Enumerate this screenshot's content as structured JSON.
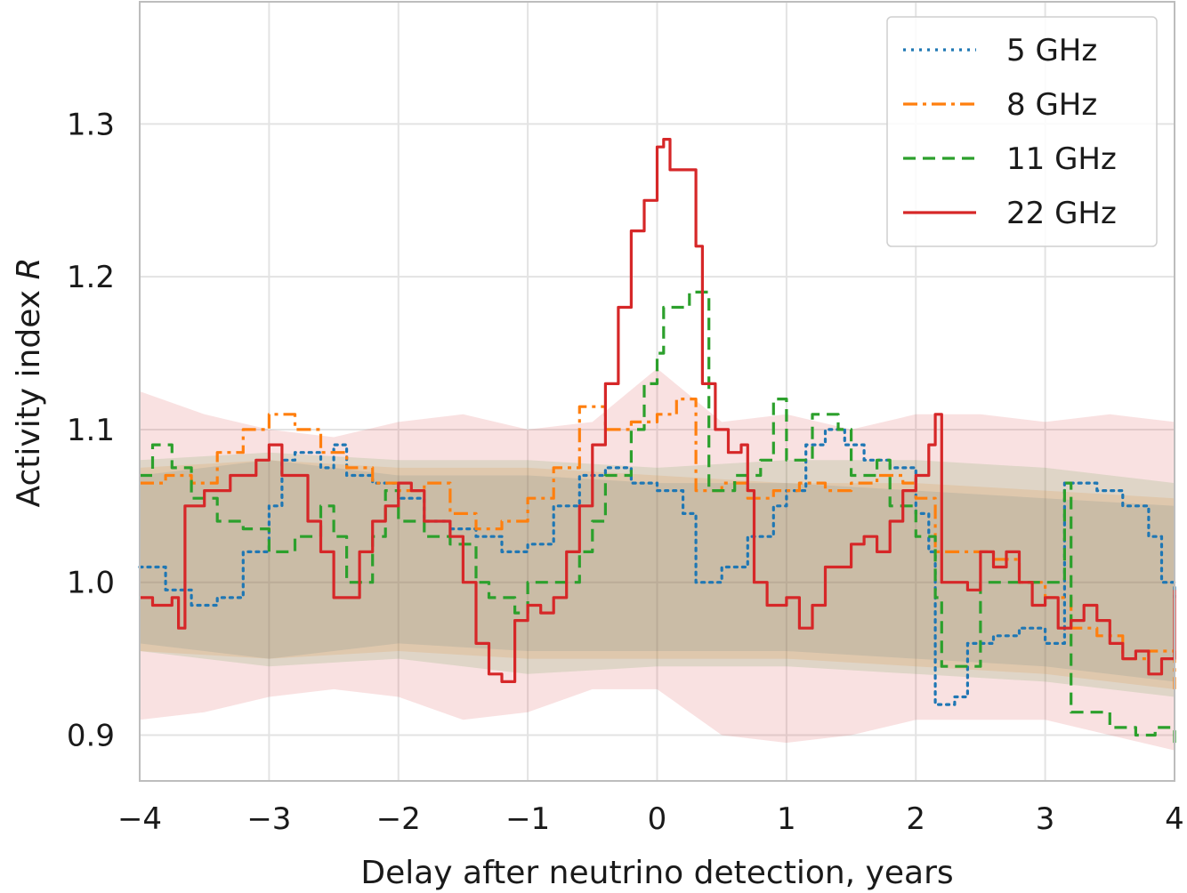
{
  "chart_data": {
    "type": "line",
    "title": "",
    "xlabel": "Delay after neutrino detection, years",
    "ylabel": "Activity index R",
    "ylabel_main": "Activity index ",
    "ylabel_italic": "R",
    "xlim": [
      -4,
      4
    ],
    "ylim": [
      0.87,
      1.38
    ],
    "xticks": [
      -4,
      -3,
      -2,
      -1,
      0,
      1,
      2,
      3,
      4
    ],
    "xtick_labels": [
      "−4",
      "−3",
      "−2",
      "−1",
      "0",
      "1",
      "2",
      "3",
      "4"
    ],
    "yticks": [
      0.9,
      1.0,
      1.1,
      1.2,
      1.3
    ],
    "ytick_labels": [
      "0.9",
      "1.0",
      "1.1",
      "1.2",
      "1.3"
    ],
    "grid": true,
    "legend_position": "top-right",
    "series": [
      {
        "name": "5 GHz",
        "color": "#1f77b4",
        "style": "dotted",
        "band": [
          [
            -4.0,
            0.96,
            1.07
          ],
          [
            -3.0,
            0.95,
            1.08
          ],
          [
            -2.0,
            0.96,
            1.07
          ],
          [
            -1.0,
            0.955,
            1.07
          ],
          [
            0.0,
            0.955,
            1.065
          ],
          [
            1.0,
            0.955,
            1.065
          ],
          [
            2.0,
            0.95,
            1.06
          ],
          [
            3.0,
            0.945,
            1.055
          ],
          [
            4.0,
            0.935,
            1.05
          ]
        ],
        "points": [
          [
            -4.0,
            1.01
          ],
          [
            -3.8,
            0.995
          ],
          [
            -3.6,
            0.985
          ],
          [
            -3.4,
            0.99
          ],
          [
            -3.2,
            1.02
          ],
          [
            -3.0,
            1.05
          ],
          [
            -2.9,
            1.08
          ],
          [
            -2.8,
            1.085
          ],
          [
            -2.6,
            1.075
          ],
          [
            -2.5,
            1.09
          ],
          [
            -2.4,
            1.07
          ],
          [
            -2.2,
            1.065
          ],
          [
            -2.0,
            1.055
          ],
          [
            -1.8,
            1.04
          ],
          [
            -1.6,
            1.035
          ],
          [
            -1.4,
            1.03
          ],
          [
            -1.2,
            1.02
          ],
          [
            -1.0,
            1.025
          ],
          [
            -0.8,
            1.05
          ],
          [
            -0.6,
            1.07
          ],
          [
            -0.4,
            1.075
          ],
          [
            -0.2,
            1.065
          ],
          [
            0.0,
            1.06
          ],
          [
            0.2,
            1.045
          ],
          [
            0.3,
            1.0
          ],
          [
            0.5,
            1.01
          ],
          [
            0.7,
            1.03
          ],
          [
            0.9,
            1.05
          ],
          [
            1.0,
            1.06
          ],
          [
            1.15,
            1.09
          ],
          [
            1.3,
            1.1
          ],
          [
            1.45,
            1.09
          ],
          [
            1.6,
            1.08
          ],
          [
            1.8,
            1.075
          ],
          [
            2.0,
            1.045
          ],
          [
            2.1,
            1.02
          ],
          [
            2.15,
            0.92
          ],
          [
            2.3,
            0.925
          ],
          [
            2.4,
            0.96
          ],
          [
            2.6,
            0.965
          ],
          [
            2.8,
            0.97
          ],
          [
            3.0,
            0.96
          ],
          [
            3.15,
            1.065
          ],
          [
            3.4,
            1.06
          ],
          [
            3.6,
            1.05
          ],
          [
            3.8,
            1.03
          ],
          [
            3.9,
            1.0
          ],
          [
            4.0,
            0.99
          ]
        ]
      },
      {
        "name": "8 GHz",
        "color": "#ff7f0e",
        "style": "dashdot",
        "band": [
          [
            -4.0,
            0.955,
            1.075
          ],
          [
            -3.0,
            0.95,
            1.08
          ],
          [
            -2.0,
            0.955,
            1.075
          ],
          [
            -1.0,
            0.95,
            1.075
          ],
          [
            0.0,
            0.95,
            1.07
          ],
          [
            1.0,
            0.95,
            1.065
          ],
          [
            2.0,
            0.945,
            1.065
          ],
          [
            3.0,
            0.94,
            1.06
          ],
          [
            4.0,
            0.93,
            1.055
          ]
        ],
        "points": [
          [
            -4.0,
            1.065
          ],
          [
            -3.8,
            1.07
          ],
          [
            -3.6,
            1.065
          ],
          [
            -3.4,
            1.085
          ],
          [
            -3.2,
            1.1
          ],
          [
            -3.0,
            1.11
          ],
          [
            -2.8,
            1.1
          ],
          [
            -2.6,
            1.085
          ],
          [
            -2.4,
            1.075
          ],
          [
            -2.2,
            1.065
          ],
          [
            -2.0,
            1.06
          ],
          [
            -1.8,
            1.065
          ],
          [
            -1.6,
            1.045
          ],
          [
            -1.4,
            1.035
          ],
          [
            -1.2,
            1.04
          ],
          [
            -1.0,
            1.055
          ],
          [
            -0.8,
            1.075
          ],
          [
            -0.6,
            1.115
          ],
          [
            -0.4,
            1.1
          ],
          [
            -0.2,
            1.105
          ],
          [
            0.0,
            1.11
          ],
          [
            0.15,
            1.12
          ],
          [
            0.3,
            1.06
          ],
          [
            0.5,
            1.065
          ],
          [
            0.7,
            1.055
          ],
          [
            0.9,
            1.06
          ],
          [
            1.1,
            1.065
          ],
          [
            1.3,
            1.06
          ],
          [
            1.5,
            1.065
          ],
          [
            1.7,
            1.07
          ],
          [
            1.9,
            1.065
          ],
          [
            2.0,
            1.055
          ],
          [
            2.15,
            1.02
          ],
          [
            2.4,
            1.02
          ],
          [
            2.6,
            1.015
          ],
          [
            2.8,
            1.0
          ],
          [
            3.0,
            0.99
          ],
          [
            3.2,
            0.97
          ],
          [
            3.4,
            0.965
          ],
          [
            3.6,
            0.95
          ],
          [
            3.8,
            0.955
          ],
          [
            4.0,
            0.93
          ]
        ]
      },
      {
        "name": "11 GHz",
        "color": "#2ca02c",
        "style": "dashed",
        "band": [
          [
            -4.0,
            0.955,
            1.08
          ],
          [
            -3.0,
            0.945,
            1.085
          ],
          [
            -2.0,
            0.95,
            1.08
          ],
          [
            -1.0,
            0.94,
            1.08
          ],
          [
            0.0,
            0.945,
            1.075
          ],
          [
            1.0,
            0.945,
            1.08
          ],
          [
            2.0,
            0.94,
            1.08
          ],
          [
            3.0,
            0.935,
            1.075
          ],
          [
            4.0,
            0.925,
            1.065
          ]
        ],
        "points": [
          [
            -4.0,
            1.07
          ],
          [
            -3.9,
            1.09
          ],
          [
            -3.75,
            1.075
          ],
          [
            -3.6,
            1.055
          ],
          [
            -3.4,
            1.04
          ],
          [
            -3.2,
            1.035
          ],
          [
            -3.0,
            1.02
          ],
          [
            -2.8,
            1.03
          ],
          [
            -2.6,
            1.05
          ],
          [
            -2.5,
            1.03
          ],
          [
            -2.4,
            1.0
          ],
          [
            -2.2,
            1.03
          ],
          [
            -2.1,
            1.06
          ],
          [
            -2.0,
            1.04
          ],
          [
            -1.8,
            1.03
          ],
          [
            -1.6,
            1.025
          ],
          [
            -1.4,
            1.0
          ],
          [
            -1.3,
            0.99
          ],
          [
            -1.1,
            0.98
          ],
          [
            -1.0,
            1.0
          ],
          [
            -0.8,
            1.0
          ],
          [
            -0.6,
            1.02
          ],
          [
            -0.5,
            1.04
          ],
          [
            -0.4,
            1.07
          ],
          [
            -0.2,
            1.1
          ],
          [
            -0.1,
            1.13
          ],
          [
            0.0,
            1.15
          ],
          [
            0.05,
            1.18
          ],
          [
            0.25,
            1.19
          ],
          [
            0.4,
            1.06
          ],
          [
            0.6,
            1.07
          ],
          [
            0.8,
            1.08
          ],
          [
            0.9,
            1.12
          ],
          [
            1.0,
            1.08
          ],
          [
            1.2,
            1.11
          ],
          [
            1.4,
            1.1
          ],
          [
            1.5,
            1.07
          ],
          [
            1.7,
            1.08
          ],
          [
            1.8,
            1.05
          ],
          [
            2.0,
            1.03
          ],
          [
            2.15,
            0.99
          ],
          [
            2.2,
            0.945
          ],
          [
            2.45,
            0.945
          ],
          [
            2.5,
            1.0
          ],
          [
            2.8,
            1.0
          ],
          [
            3.0,
            1.0
          ],
          [
            3.15,
            1.065
          ],
          [
            3.2,
            0.915
          ],
          [
            3.5,
            0.905
          ],
          [
            3.7,
            0.9
          ],
          [
            3.85,
            0.905
          ],
          [
            4.0,
            0.895
          ]
        ]
      },
      {
        "name": "22 GHz",
        "color": "#d62728",
        "style": "solid",
        "band": [
          [
            -4.0,
            0.91,
            1.125
          ],
          [
            -3.5,
            0.915,
            1.11
          ],
          [
            -3.0,
            0.925,
            1.1
          ],
          [
            -2.5,
            0.93,
            1.095
          ],
          [
            -2.0,
            0.925,
            1.105
          ],
          [
            -1.5,
            0.91,
            1.11
          ],
          [
            -1.0,
            0.915,
            1.1
          ],
          [
            -0.5,
            0.93,
            1.105
          ],
          [
            0.0,
            0.93,
            1.14
          ],
          [
            0.5,
            0.9,
            1.105
          ],
          [
            1.0,
            0.895,
            1.11
          ],
          [
            1.5,
            0.9,
            1.1
          ],
          [
            2.0,
            0.91,
            1.11
          ],
          [
            2.5,
            0.91,
            1.11
          ],
          [
            3.0,
            0.91,
            1.105
          ],
          [
            3.5,
            0.9,
            1.11
          ],
          [
            4.0,
            0.89,
            1.105
          ]
        ],
        "points": [
          [
            -4.0,
            0.99
          ],
          [
            -3.9,
            0.985
          ],
          [
            -3.75,
            0.99
          ],
          [
            -3.7,
            0.97
          ],
          [
            -3.65,
            1.05
          ],
          [
            -3.5,
            1.06
          ],
          [
            -3.3,
            1.07
          ],
          [
            -3.1,
            1.08
          ],
          [
            -3.0,
            1.09
          ],
          [
            -2.9,
            1.07
          ],
          [
            -2.8,
            1.07
          ],
          [
            -2.7,
            1.04
          ],
          [
            -2.6,
            1.02
          ],
          [
            -2.5,
            0.99
          ],
          [
            -2.4,
            0.99
          ],
          [
            -2.3,
            1.02
          ],
          [
            -2.2,
            1.04
          ],
          [
            -2.1,
            1.05
          ],
          [
            -2.0,
            1.065
          ],
          [
            -1.9,
            1.06
          ],
          [
            -1.8,
            1.04
          ],
          [
            -1.6,
            1.03
          ],
          [
            -1.5,
            1.0
          ],
          [
            -1.4,
            0.96
          ],
          [
            -1.3,
            0.94
          ],
          [
            -1.2,
            0.935
          ],
          [
            -1.1,
            0.975
          ],
          [
            -1.0,
            0.985
          ],
          [
            -0.9,
            0.98
          ],
          [
            -0.8,
            0.99
          ],
          [
            -0.7,
            1.02
          ],
          [
            -0.6,
            1.05
          ],
          [
            -0.5,
            1.09
          ],
          [
            -0.4,
            1.13
          ],
          [
            -0.3,
            1.18
          ],
          [
            -0.2,
            1.23
          ],
          [
            -0.1,
            1.25
          ],
          [
            0.0,
            1.285
          ],
          [
            0.05,
            1.29
          ],
          [
            0.1,
            1.27
          ],
          [
            0.25,
            1.27
          ],
          [
            0.3,
            1.22
          ],
          [
            0.35,
            1.13
          ],
          [
            0.45,
            1.1
          ],
          [
            0.55,
            1.085
          ],
          [
            0.65,
            1.09
          ],
          [
            0.7,
            1.06
          ],
          [
            0.75,
            1.0
          ],
          [
            0.85,
            0.985
          ],
          [
            1.0,
            0.99
          ],
          [
            1.1,
            0.97
          ],
          [
            1.2,
            0.985
          ],
          [
            1.3,
            1.01
          ],
          [
            1.5,
            1.025
          ],
          [
            1.6,
            1.03
          ],
          [
            1.7,
            1.02
          ],
          [
            1.8,
            1.04
          ],
          [
            1.9,
            1.06
          ],
          [
            2.0,
            1.07
          ],
          [
            2.1,
            1.09
          ],
          [
            2.15,
            1.11
          ],
          [
            2.2,
            1.0
          ],
          [
            2.4,
            0.995
          ],
          [
            2.5,
            1.02
          ],
          [
            2.6,
            1.01
          ],
          [
            2.7,
            1.02
          ],
          [
            2.8,
            1.0
          ],
          [
            2.9,
            0.985
          ],
          [
            3.0,
            0.99
          ],
          [
            3.1,
            0.97
          ],
          [
            3.2,
            0.975
          ],
          [
            3.3,
            0.985
          ],
          [
            3.4,
            0.975
          ],
          [
            3.5,
            0.96
          ],
          [
            3.6,
            0.95
          ],
          [
            3.7,
            0.955
          ],
          [
            3.8,
            0.94
          ],
          [
            3.9,
            0.95
          ],
          [
            4.0,
            0.995
          ]
        ]
      }
    ]
  }
}
